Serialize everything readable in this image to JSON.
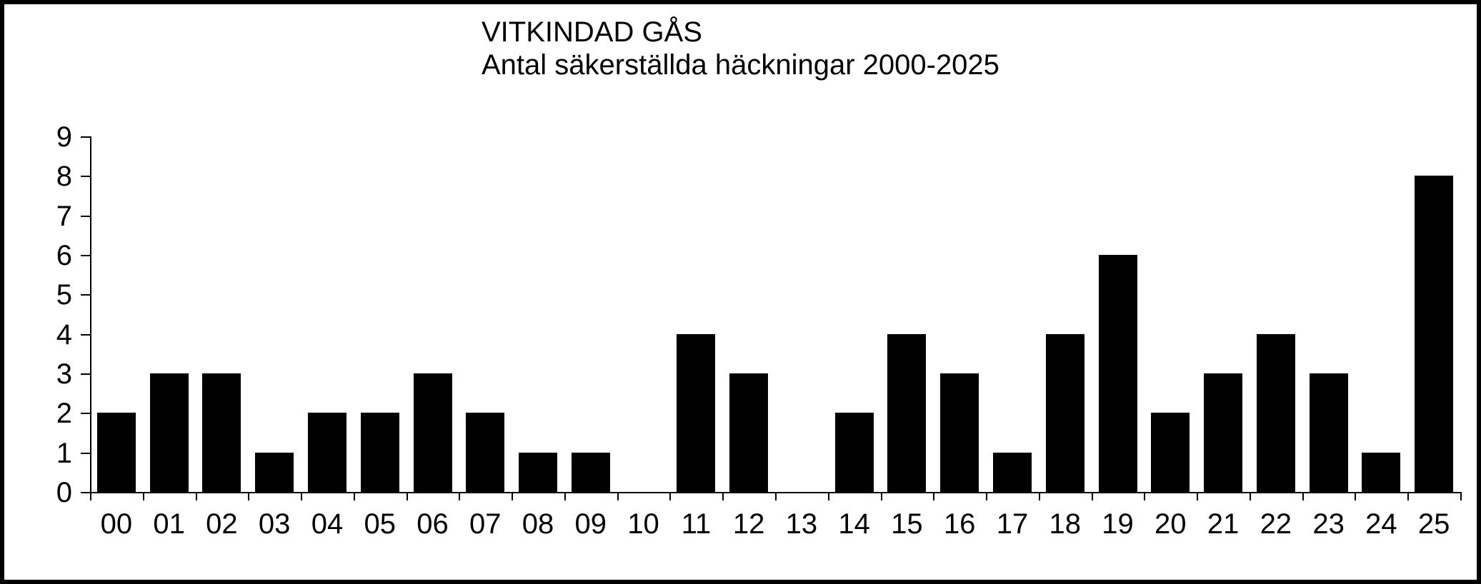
{
  "chart_data": {
    "type": "bar",
    "title": "VITKINDAD GÅS",
    "subtitle": "Antal säkerställda häckningar 2000-2025",
    "categories": [
      "00",
      "01",
      "02",
      "03",
      "04",
      "05",
      "06",
      "07",
      "08",
      "09",
      "10",
      "11",
      "12",
      "13",
      "14",
      "15",
      "16",
      "17",
      "18",
      "19",
      "20",
      "21",
      "22",
      "23",
      "24",
      "25"
    ],
    "values": [
      2,
      3,
      3,
      1,
      2,
      2,
      3,
      2,
      1,
      1,
      0,
      4,
      3,
      0,
      2,
      4,
      3,
      1,
      4,
      6,
      2,
      3,
      4,
      3,
      1,
      8
    ],
    "xlabel": "",
    "ylabel": "",
    "ylim": [
      0,
      9
    ],
    "yticks": [
      0,
      1,
      2,
      3,
      4,
      5,
      6,
      7,
      8,
      9
    ],
    "grid": "off",
    "legend": "none",
    "bar_color": "#000000",
    "axis_color": "#000000",
    "text_color": "#000000",
    "background_color": "#ffffff",
    "frame_border_color": "#000000"
  }
}
